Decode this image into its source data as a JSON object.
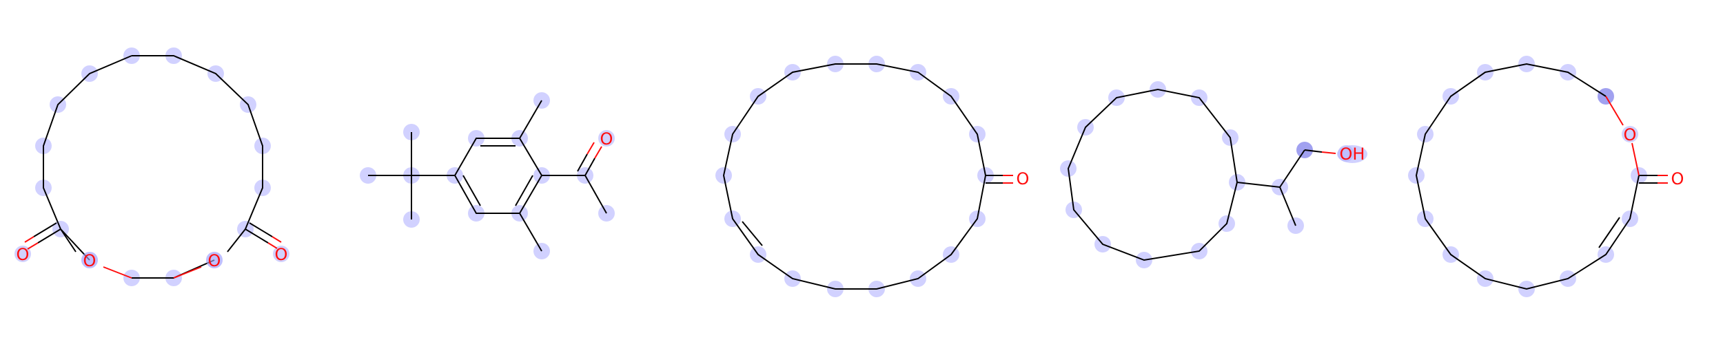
{
  "colors": {
    "bond": "#000000",
    "heteroatom_oxygen": "#ff0d0d",
    "atom_highlight": "#b3b3ff",
    "atom_highlight_strong": "#6f6fe8",
    "background": "#ffffff"
  },
  "molecules": [
    {
      "name": "",
      "labels": {
        "o_carbonyl_1": "O",
        "o_ring_1": "O",
        "o_ring_2": "O",
        "o_carbonyl_2": "O"
      }
    },
    {
      "name": "",
      "labels": {
        "o_ketone": "O"
      }
    },
    {
      "name": "",
      "labels": {
        "o_ketone": "O"
      }
    },
    {
      "name": "",
      "labels": {
        "hydroxyl": "OH"
      }
    },
    {
      "name": "",
      "labels": {
        "o_ring": "O",
        "o_carbonyl": "O"
      }
    }
  ]
}
